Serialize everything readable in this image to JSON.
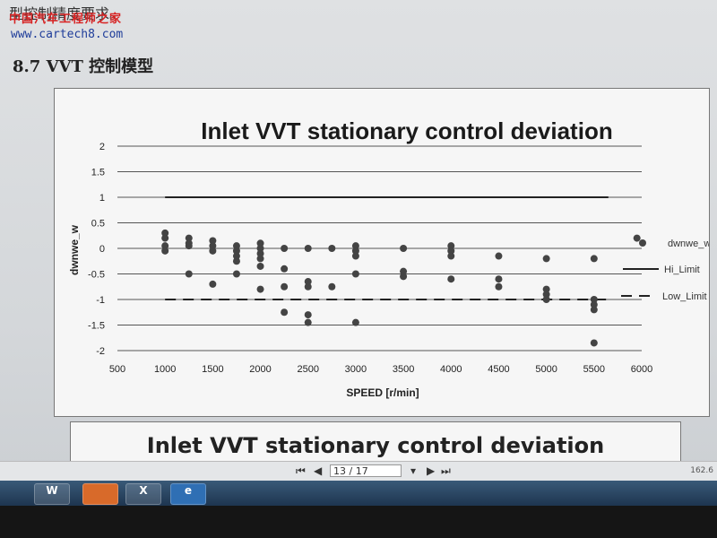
{
  "document": {
    "top_text": "型控制精度要求。",
    "watermark": "中国汽车工程师之家",
    "url": "www.cartech8.com",
    "section": "8.7 VVT 控制模型",
    "next_title": "Inlet VVT stationary control deviation"
  },
  "viewer": {
    "first": "⏮",
    "prev": "◀",
    "page": "13 / 17",
    "dropdown": "▾",
    "next": "▶",
    "last": "⏭",
    "zoom": "162.6"
  },
  "taskbar": [
    "W",
    "",
    "X",
    "e"
  ],
  "chart_data": {
    "type": "scatter",
    "title": "Inlet VVT stationary control deviation",
    "xlabel": "SPEED [r/min]",
    "ylabel": "dwnwe_w",
    "xlim": [
      500,
      6000
    ],
    "ylim": [
      -2,
      2
    ],
    "x_ticks": [
      500,
      1000,
      1500,
      2000,
      2500,
      3000,
      3500,
      4000,
      4500,
      5000,
      5500,
      6000
    ],
    "y_ticks": [
      2,
      1.5,
      1,
      0.5,
      0,
      -0.5,
      -1,
      -1.5,
      -2
    ],
    "y_tick_labels": [
      "2",
      "1.5",
      "1",
      "0.5",
      "0",
      "-0.5",
      "-1",
      "-1.5",
      "-2"
    ],
    "grid": true,
    "legend": [
      "dwnwe_w",
      "Hi_Limit",
      "Low_Limit"
    ],
    "legend_position": "right",
    "hi_limit": 1,
    "low_limit": -1,
    "series": [
      {
        "name": "dwnwe_w",
        "points": [
          [
            1000,
            0.3
          ],
          [
            1000,
            0.2
          ],
          [
            1000,
            0.05
          ],
          [
            1000,
            -0.05
          ],
          [
            1250,
            0.2
          ],
          [
            1250,
            0.1
          ],
          [
            1250,
            0.05
          ],
          [
            1250,
            -0.5
          ],
          [
            1500,
            0.15
          ],
          [
            1500,
            0.05
          ],
          [
            1500,
            -0.05
          ],
          [
            1500,
            -0.7
          ],
          [
            1750,
            0.05
          ],
          [
            1750,
            -0.05
          ],
          [
            1750,
            -0.15
          ],
          [
            1750,
            -0.25
          ],
          [
            1750,
            -0.5
          ],
          [
            2000,
            0.1
          ],
          [
            2000,
            0.0
          ],
          [
            2000,
            -0.1
          ],
          [
            2000,
            -0.2
          ],
          [
            2000,
            -0.35
          ],
          [
            2000,
            -0.8
          ],
          [
            2250,
            0.0
          ],
          [
            2250,
            -0.4
          ],
          [
            2250,
            -0.75
          ],
          [
            2250,
            -1.25
          ],
          [
            2500,
            0.0
          ],
          [
            2500,
            -0.65
          ],
          [
            2500,
            -0.75
          ],
          [
            2500,
            -1.3
          ],
          [
            2500,
            -1.45
          ],
          [
            2750,
            0.0
          ],
          [
            2750,
            -0.75
          ],
          [
            3000,
            0.05
          ],
          [
            3000,
            -0.05
          ],
          [
            3000,
            -0.15
          ],
          [
            3000,
            -0.5
          ],
          [
            3000,
            -1.45
          ],
          [
            3500,
            0.0
          ],
          [
            3500,
            -0.45
          ],
          [
            3500,
            -0.55
          ],
          [
            4000,
            0.05
          ],
          [
            4000,
            -0.05
          ],
          [
            4000,
            -0.15
          ],
          [
            4000,
            -0.6
          ],
          [
            4500,
            -0.15
          ],
          [
            4500,
            -0.6
          ],
          [
            4500,
            -0.75
          ],
          [
            5000,
            -0.2
          ],
          [
            5000,
            -0.8
          ],
          [
            5000,
            -0.9
          ],
          [
            5000,
            -1.0
          ],
          [
            5500,
            -0.2
          ],
          [
            5500,
            -1.0
          ],
          [
            5500,
            -1.1
          ],
          [
            5500,
            -1.2
          ],
          [
            5500,
            -1.85
          ],
          [
            5950,
            0.2
          ]
        ]
      }
    ],
    "marker_color": "#444444",
    "line_color": "#222222"
  }
}
